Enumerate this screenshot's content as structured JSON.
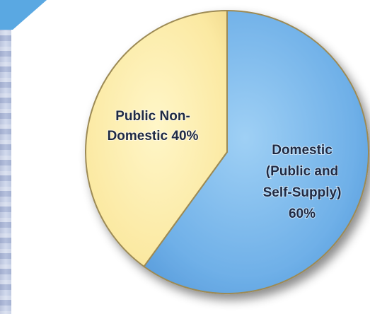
{
  "chart_data": {
    "type": "pie",
    "title": "",
    "slices": [
      {
        "label_lines": [
          "Domestic",
          "(Public and",
          "Self-Supply)",
          "60%"
        ],
        "value": 60,
        "color": "#6eaee6"
      },
      {
        "label_lines": [
          "Public Non-",
          "Domestic 40%"
        ],
        "value": 40,
        "color": "#fbeaa6"
      }
    ],
    "legend": "none"
  },
  "colors": {
    "accent_arrow": "#5aa8e2",
    "side_strip": "#b9c4e0"
  }
}
